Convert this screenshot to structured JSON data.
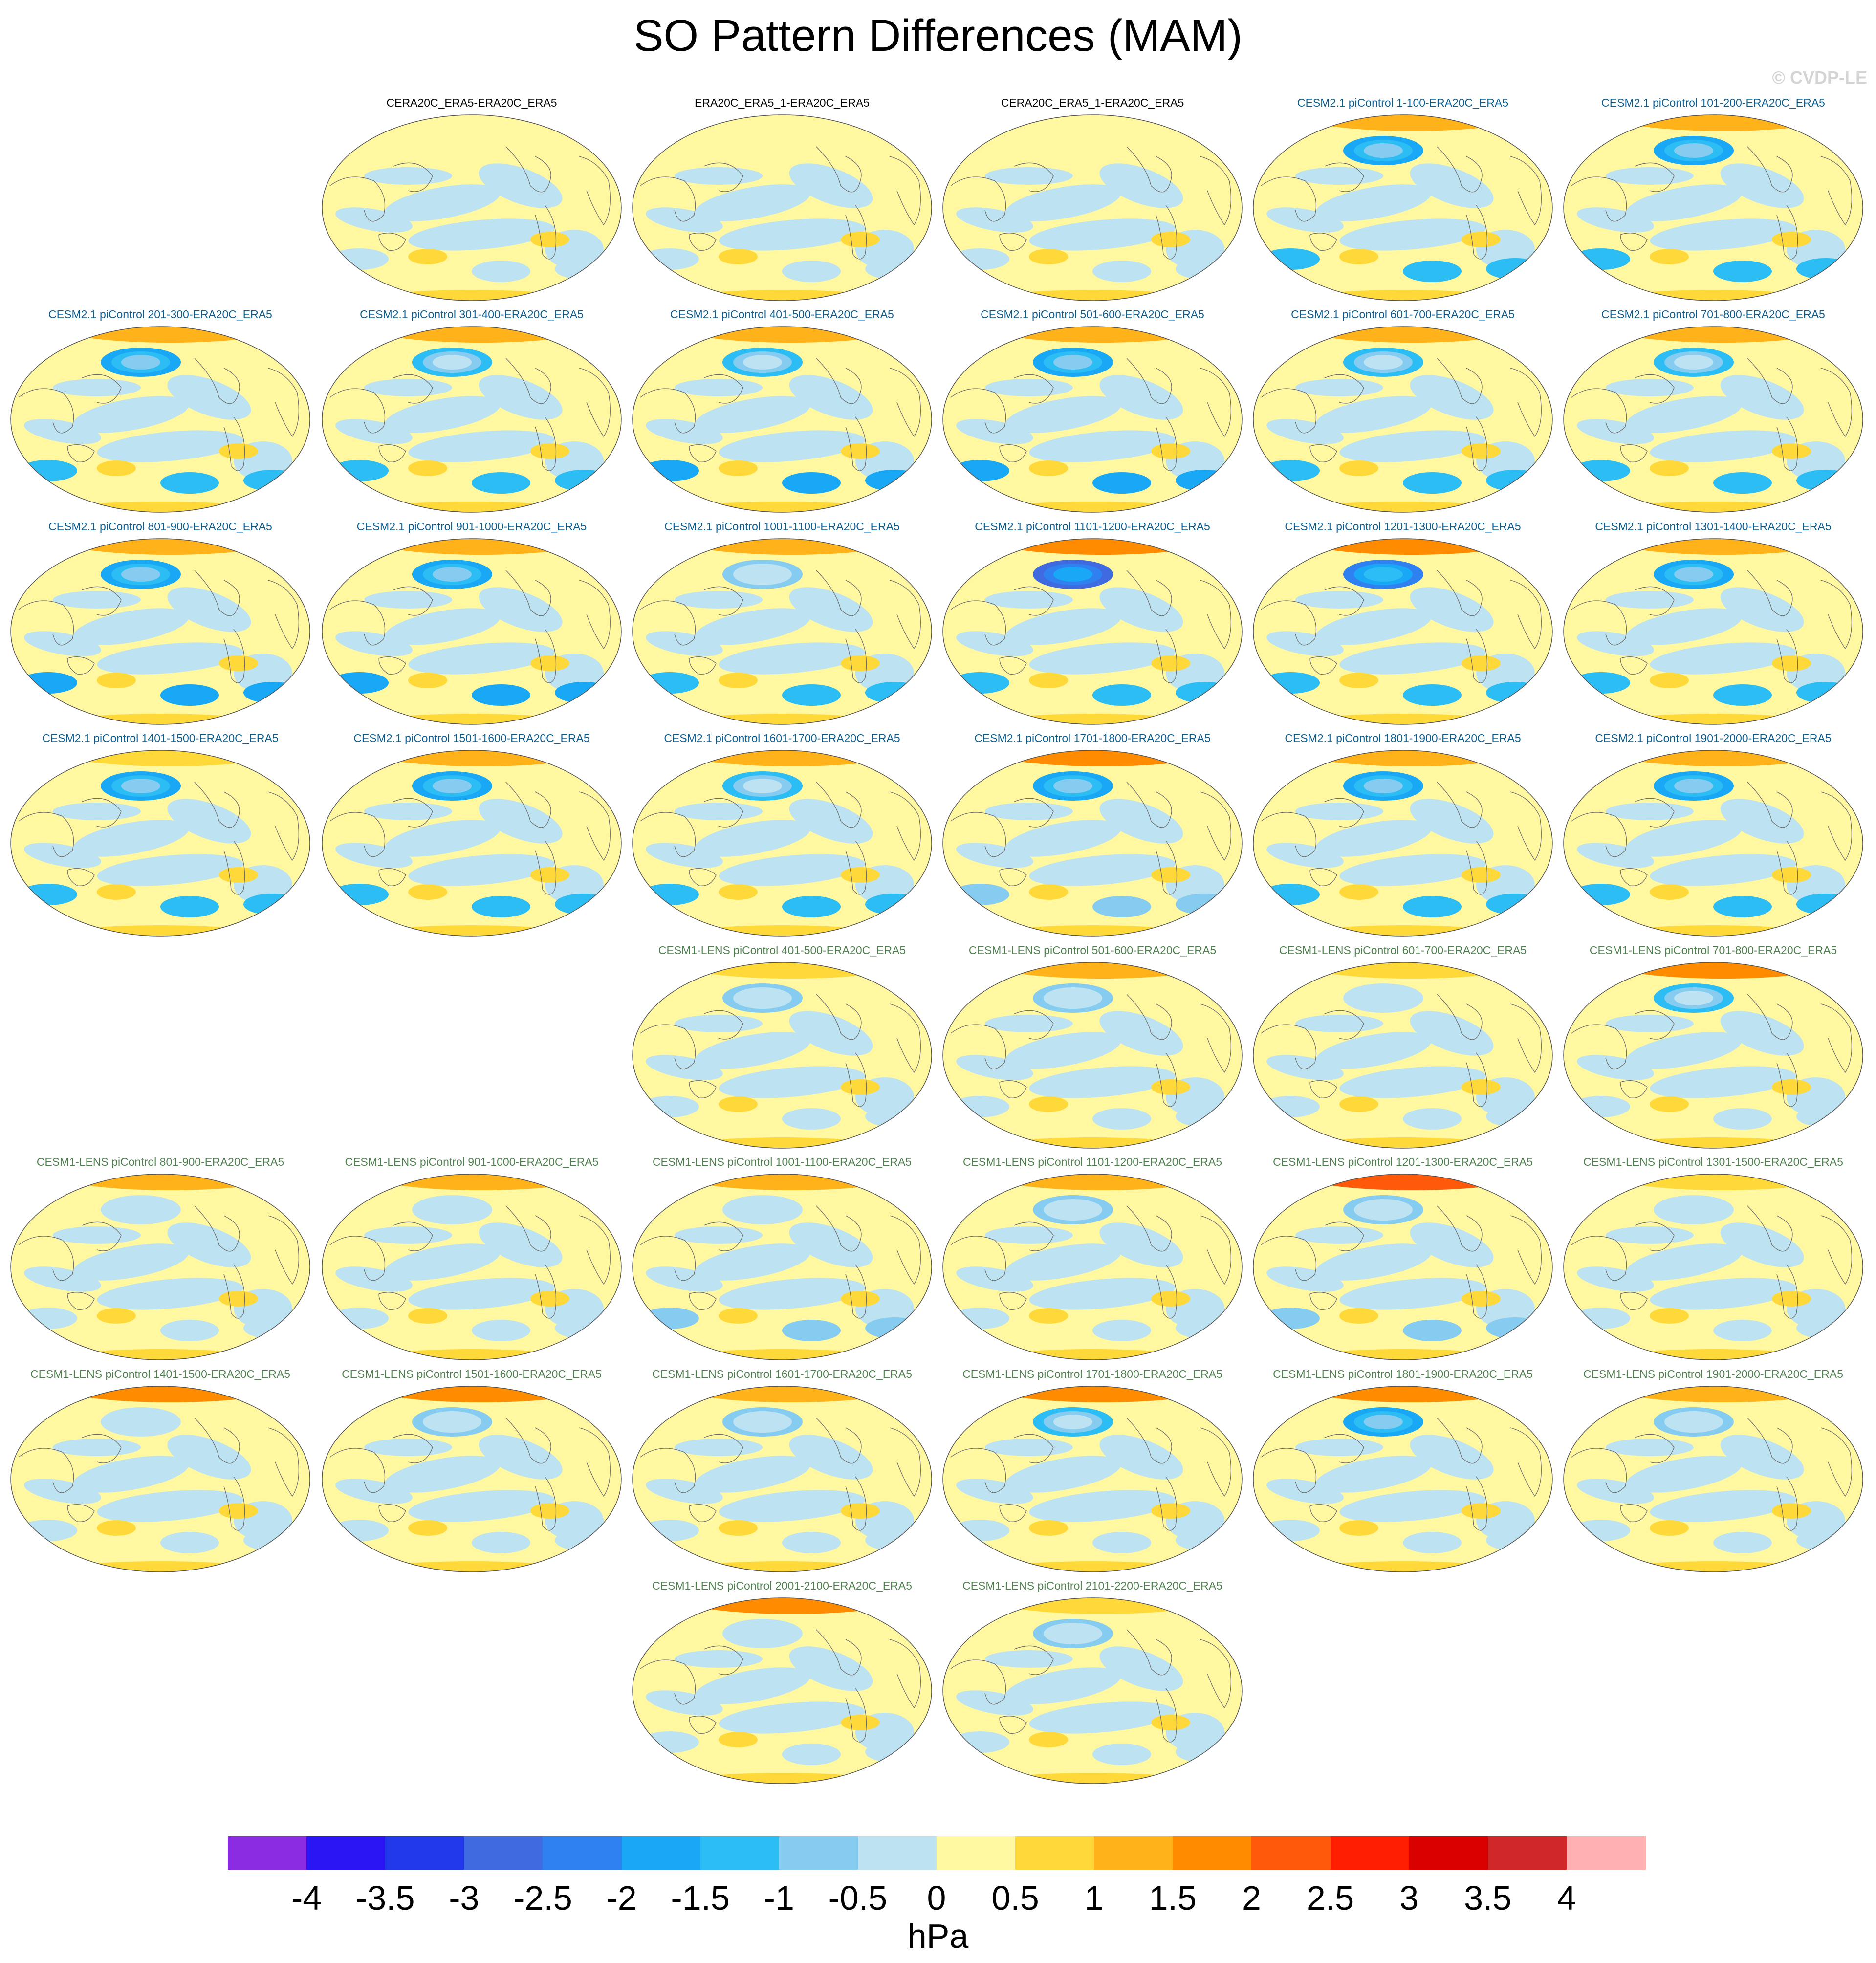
{
  "title": "SO Pattern Differences (MAM)",
  "watermark": "© CVDP-LE",
  "map_projection": "robinson-like ellipse, Pacific-centered",
  "title_colors": {
    "observations": "#000000",
    "cesm2": "#0b5c8f",
    "cesm1": "#4f7f4f"
  },
  "panels": [
    {
      "label": "CERA20C_ERA5-ERA20C_ERA5",
      "group": "observations",
      "nh_high": 0.0,
      "nh_low": 0.0,
      "sh_low": 0.2
    },
    {
      "label": "ERA20C_ERA5_1-ERA20C_ERA5",
      "group": "observations",
      "nh_high": 0.0,
      "nh_low": 0.0,
      "sh_low": 0.3
    },
    {
      "label": "CERA20C_ERA5_1-ERA20C_ERA5",
      "group": "observations",
      "nh_high": 0.0,
      "nh_low": 0.0,
      "sh_low": 0.3
    },
    {
      "label": "CESM2.1 piControl 1-100-ERA20C_ERA5",
      "group": "cesm2",
      "nh_high": 1.0,
      "nh_low": 2.0,
      "sh_low": 1.5
    },
    {
      "label": "CESM2.1 piControl 101-200-ERA20C_ERA5",
      "group": "cesm2",
      "nh_high": 1.0,
      "nh_low": 2.0,
      "sh_low": 1.5
    },
    {
      "label": "CESM2.1 piControl 201-300-ERA20C_ERA5",
      "group": "cesm2",
      "nh_high": 1.0,
      "nh_low": 2.0,
      "sh_low": 1.5
    },
    {
      "label": "CESM2.1 piControl 301-400-ERA20C_ERA5",
      "group": "cesm2",
      "nh_high": 1.0,
      "nh_low": 1.5,
      "sh_low": 1.5
    },
    {
      "label": "CESM2.1 piControl 401-500-ERA20C_ERA5",
      "group": "cesm2",
      "nh_high": 1.0,
      "nh_low": 1.5,
      "sh_low": 2.0
    },
    {
      "label": "CESM2.1 piControl 501-600-ERA20C_ERA5",
      "group": "cesm2",
      "nh_high": 1.0,
      "nh_low": 2.0,
      "sh_low": 2.0
    },
    {
      "label": "CESM2.1 piControl 601-700-ERA20C_ERA5",
      "group": "cesm2",
      "nh_high": 1.0,
      "nh_low": 1.5,
      "sh_low": 1.5
    },
    {
      "label": "CESM2.1 piControl 701-800-ERA20C_ERA5",
      "group": "cesm2",
      "nh_high": 1.0,
      "nh_low": 1.5,
      "sh_low": 1.5
    },
    {
      "label": "CESM2.1 piControl 801-900-ERA20C_ERA5",
      "group": "cesm2",
      "nh_high": 1.0,
      "nh_low": 2.0,
      "sh_low": 2.0
    },
    {
      "label": "CESM2.1 piControl 901-1000-ERA20C_ERA5",
      "group": "cesm2",
      "nh_high": 1.0,
      "nh_low": 2.0,
      "sh_low": 2.0
    },
    {
      "label": "CESM2.1 piControl 1001-1100-ERA20C_ERA5",
      "group": "cesm2",
      "nh_high": 1.0,
      "nh_low": 1.0,
      "sh_low": 1.5
    },
    {
      "label": "CESM2.1 piControl 1101-1200-ERA20C_ERA5",
      "group": "cesm2",
      "nh_high": 1.5,
      "nh_low": 3.0,
      "sh_low": 1.5
    },
    {
      "label": "CESM2.1 piControl 1201-1300-ERA20C_ERA5",
      "group": "cesm2",
      "nh_high": 1.5,
      "nh_low": 2.5,
      "sh_low": 1.5
    },
    {
      "label": "CESM2.1 piControl 1301-1400-ERA20C_ERA5",
      "group": "cesm2",
      "nh_high": 1.0,
      "nh_low": 2.0,
      "sh_low": 1.5
    },
    {
      "label": "CESM2.1 piControl 1401-1500-ERA20C_ERA5",
      "group": "cesm2",
      "nh_high": 0.5,
      "nh_low": 2.0,
      "sh_low": 1.5
    },
    {
      "label": "CESM2.1 piControl 1501-1600-ERA20C_ERA5",
      "group": "cesm2",
      "nh_high": 1.0,
      "nh_low": 2.0,
      "sh_low": 1.5
    },
    {
      "label": "CESM2.1 piControl 1601-1700-ERA20C_ERA5",
      "group": "cesm2",
      "nh_high": 1.0,
      "nh_low": 1.5,
      "sh_low": 1.5
    },
    {
      "label": "CESM2.1 piControl 1701-1800-ERA20C_ERA5",
      "group": "cesm2",
      "nh_high": 1.5,
      "nh_low": 2.0,
      "sh_low": 1.0
    },
    {
      "label": "CESM2.1 piControl 1801-1900-ERA20C_ERA5",
      "group": "cesm2",
      "nh_high": 1.0,
      "nh_low": 2.0,
      "sh_low": 1.5
    },
    {
      "label": "CESM2.1 piControl 1901-2000-ERA20C_ERA5",
      "group": "cesm2",
      "nh_high": 1.0,
      "nh_low": 2.0,
      "sh_low": 1.5
    },
    {
      "label": "CESM1-LENS piControl 401-500-ERA20C_ERA5",
      "group": "cesm1",
      "nh_high": 0.5,
      "nh_low": 1.0,
      "sh_low": 0.5
    },
    {
      "label": "CESM1-LENS piControl 501-600-ERA20C_ERA5",
      "group": "cesm1",
      "nh_high": 1.0,
      "nh_low": 1.0,
      "sh_low": 0.5
    },
    {
      "label": "CESM1-LENS piControl 601-700-ERA20C_ERA5",
      "group": "cesm1",
      "nh_high": 0.5,
      "nh_low": 0.5,
      "sh_low": 0.5
    },
    {
      "label": "CESM1-LENS piControl 701-800-ERA20C_ERA5",
      "group": "cesm1",
      "nh_high": 1.5,
      "nh_low": 1.5,
      "sh_low": 0.5
    },
    {
      "label": "CESM1-LENS piControl 801-900-ERA20C_ERA5",
      "group": "cesm1",
      "nh_high": 1.0,
      "nh_low": 0.5,
      "sh_low": 0.5
    },
    {
      "label": "CESM1-LENS piControl 901-1000-ERA20C_ERA5",
      "group": "cesm1",
      "nh_high": 1.0,
      "nh_low": 0.5,
      "sh_low": 0.5
    },
    {
      "label": "CESM1-LENS piControl 1001-1100-ERA20C_ERA5",
      "group": "cesm1",
      "nh_high": 1.0,
      "nh_low": 0.5,
      "sh_low": 1.0
    },
    {
      "label": "CESM1-LENS piControl 1101-1200-ERA20C_ERA5",
      "group": "cesm1",
      "nh_high": 1.0,
      "nh_low": 1.0,
      "sh_low": 0.5
    },
    {
      "label": "CESM1-LENS piControl 1201-1300-ERA20C_ERA5",
      "group": "cesm1",
      "nh_high": 2.0,
      "nh_low": 1.0,
      "sh_low": 1.0
    },
    {
      "label": "CESM1-LENS piControl 1301-1500-ERA20C_ERA5",
      "group": "cesm1",
      "nh_high": 0.5,
      "nh_low": 0.5,
      "sh_low": 0.5
    },
    {
      "label": "CESM1-LENS piControl 1401-1500-ERA20C_ERA5",
      "group": "cesm1",
      "nh_high": 1.5,
      "nh_low": 0.5,
      "sh_low": 0.5
    },
    {
      "label": "CESM1-LENS piControl 1501-1600-ERA20C_ERA5",
      "group": "cesm1",
      "nh_high": 1.5,
      "nh_low": 1.0,
      "sh_low": 0.5
    },
    {
      "label": "CESM1-LENS piControl 1601-1700-ERA20C_ERA5",
      "group": "cesm1",
      "nh_high": 1.0,
      "nh_low": 1.0,
      "sh_low": 0.5
    },
    {
      "label": "CESM1-LENS piControl 1701-1800-ERA20C_ERA5",
      "group": "cesm1",
      "nh_high": 1.5,
      "nh_low": 1.5,
      "sh_low": 0.5
    },
    {
      "label": "CESM1-LENS piControl 1801-1900-ERA20C_ERA5",
      "group": "cesm1",
      "nh_high": 1.5,
      "nh_low": 2.0,
      "sh_low": 0.5
    },
    {
      "label": "CESM1-LENS piControl 1901-2000-ERA20C_ERA5",
      "group": "cesm1",
      "nh_high": 1.0,
      "nh_low": 1.0,
      "sh_low": 0.5
    },
    {
      "label": "CESM1-LENS piControl 2001-2100-ERA20C_ERA5",
      "group": "cesm1",
      "nh_high": 1.5,
      "nh_low": 0.5,
      "sh_low": 0.5
    },
    {
      "label": "CESM1-LENS piControl 2101-2200-ERA20C_ERA5",
      "group": "cesm1",
      "nh_high": 0.5,
      "nh_low": 1.0,
      "sh_low": 0.5
    }
  ],
  "colorbar": {
    "labels": [
      "-4",
      "-3.5",
      "-3",
      "-2.5",
      "-2",
      "-1.5",
      "-1",
      "-0.5",
      "0",
      "0.5",
      "1",
      "1.5",
      "2",
      "2.5",
      "3",
      "3.5",
      "4"
    ],
    "colors": [
      "#8b2be2",
      "#2a16f5",
      "#2038e8",
      "#3f6ae0",
      "#2f80f0",
      "#18a8f5",
      "#2bbdf3",
      "#86ccf0",
      "#bde3f2",
      "#fff8a0",
      "#ffd93a",
      "#ffb21a",
      "#ff8c00",
      "#ff5a0a",
      "#ff1e00",
      "#db0000",
      "#d02828",
      "#ffb0b0"
    ],
    "units": "hPa"
  }
}
